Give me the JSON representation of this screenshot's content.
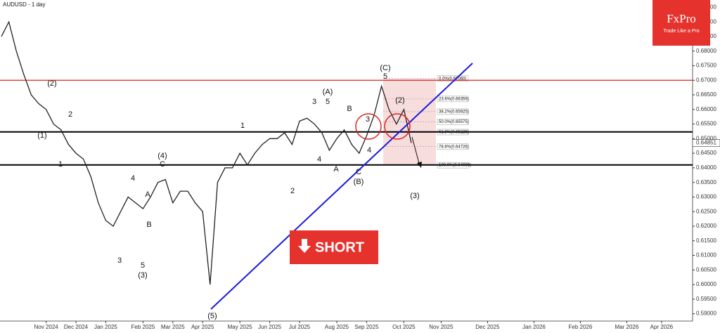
{
  "chart_data": {
    "type": "line",
    "title": "AUDUSD - 1 day",
    "brand": {
      "name": "FxPro",
      "tagline": "Trade Like a Pro"
    },
    "signal": "SHORT",
    "categories": [
      null,
      null,
      null,
      null,
      null,
      null,
      "Nov 2024",
      null,
      null,
      null,
      "Dec 2024",
      null,
      null,
      null,
      "Jan 2025",
      null,
      null,
      null,
      null,
      "Feb 2025",
      null,
      null,
      null,
      "Mar 2025",
      null,
      null,
      null,
      "Apr 2025",
      null,
      null,
      null,
      null,
      "May 2025",
      null,
      null,
      null,
      "Jun 2025",
      null,
      null,
      null,
      "Jul 2025",
      null,
      null,
      null,
      null,
      "Aug 2025",
      null,
      null,
      null,
      "Sep 2025",
      null,
      null,
      null,
      null,
      "Oct 2025",
      null,
      null,
      null,
      null,
      "Nov 2025",
      null,
      null,
      null,
      "Dec 2025",
      null,
      null,
      null,
      "Jan 2026",
      null,
      null,
      null,
      "Feb 2026",
      null,
      null,
      null,
      "Mar 2026",
      null,
      null,
      "Apr 2026",
      null
    ],
    "series": [
      {
        "name": "AUDUSD",
        "color": "#222222",
        "values": [
          0.685,
          0.69,
          0.68,
          0.672,
          0.665,
          0.662,
          0.66,
          0.655,
          0.653,
          0.648,
          0.645,
          0.643,
          0.637,
          0.628,
          0.622,
          0.62,
          0.625,
          0.63,
          0.628,
          0.626,
          0.63,
          0.635,
          0.636,
          0.628,
          0.632,
          0.632,
          0.628,
          0.625,
          0.6,
          0.635,
          0.64,
          0.64,
          0.645,
          0.641,
          0.645,
          0.648,
          0.65,
          0.65,
          0.652,
          0.648,
          0.656,
          0.657,
          0.655,
          0.652,
          0.646,
          0.65,
          0.653,
          0.648,
          0.645,
          0.651,
          0.658,
          0.668,
          0.66,
          0.655,
          0.66,
          0.64851,
          null,
          null,
          null,
          null,
          null,
          null,
          null,
          null,
          null,
          null,
          null,
          null,
          null,
          null,
          null,
          null,
          null,
          null,
          null,
          null,
          null,
          null,
          null,
          null
        ]
      }
    ],
    "last_price": 0.64851,
    "ylim": [
      0.5875,
      0.6975
    ],
    "yticks": [
      {
        "value": 0.59,
        "label": "0.59000"
      },
      {
        "value": 0.595,
        "label": "0.59500"
      },
      {
        "value": 0.6,
        "label": "0.60000"
      },
      {
        "value": 0.605,
        "label": "0.60500"
      },
      {
        "value": 0.61,
        "label": "0.61000"
      },
      {
        "value": 0.615,
        "label": "0.61500"
      },
      {
        "value": 0.62,
        "label": "0.62000"
      },
      {
        "value": 0.625,
        "label": "0.62500"
      },
      {
        "value": 0.63,
        "label": "0.63000"
      },
      {
        "value": 0.635,
        "label": "0.63500"
      },
      {
        "value": 0.64,
        "label": "0.64000"
      },
      {
        "value": 0.645,
        "label": "0.64500"
      },
      {
        "value": 0.65,
        "label": "0.65000"
      },
      {
        "value": 0.655,
        "label": "0.65500"
      },
      {
        "value": 0.66,
        "label": "0.66000"
      },
      {
        "value": 0.665,
        "label": "0.66500"
      },
      {
        "value": 0.67,
        "label": "0.67000"
      },
      {
        "value": 0.675,
        "label": "0.67500"
      },
      {
        "value": 0.68,
        "label": "0.68000"
      },
      {
        "value": 0.685,
        "label": "0.68500"
      },
      {
        "value": 0.69,
        "label": "0.69000"
      },
      {
        "value": 0.695,
        "label": "0.69500"
      }
    ],
    "hlines": [
      {
        "value": 0.67,
        "color": "#e0201b"
      },
      {
        "value": 0.6523,
        "color": "#000000"
      },
      {
        "value": 0.641,
        "color": "#000000"
      }
    ],
    "fib_levels": [
      {
        "value": 0.6706,
        "label": "0.0%(0.67060)"
      },
      {
        "value": 0.66359,
        "label": "23.6%(0.66359)"
      },
      {
        "value": 0.65925,
        "label": "38.2%(0.65925)"
      },
      {
        "value": 0.65575,
        "label": "50.0%(0.65575)"
      },
      {
        "value": 0.65225,
        "label": "61.8%(0.65225)"
      },
      {
        "value": 0.64726,
        "label": "78.6%(0.64726)"
      },
      {
        "value": 0.6409,
        "label": "100.0%(0.64090)"
      }
    ],
    "annotations": [
      "(2)",
      "2",
      "(1)",
      "1",
      "(4)",
      "C",
      "A",
      "4",
      "B",
      "3",
      "5",
      "(3)",
      "(5)",
      "1",
      "2",
      "3",
      "5",
      "(A)",
      "4",
      "A",
      "B",
      "C",
      "(B)",
      "3",
      "4",
      "5",
      "(C)",
      "(2)",
      "(3)"
    ]
  }
}
